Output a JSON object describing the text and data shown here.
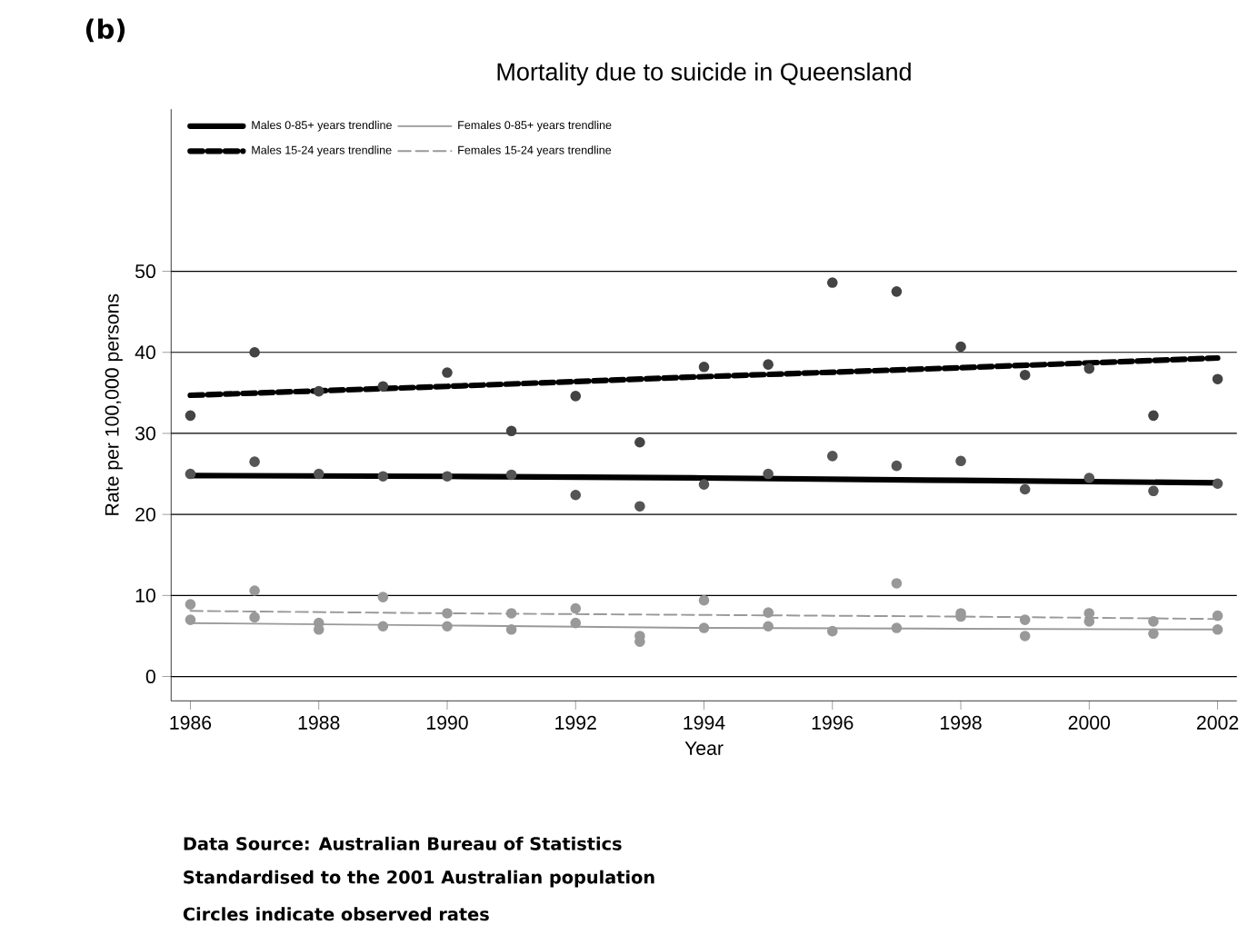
{
  "chart_data": {
    "type": "scatter",
    "title": "Mortality due to suicide in Queensland",
    "xlabel": "Year",
    "ylabel": "Rate per 100,000 persons",
    "annotations": [
      "(b)",
      "Data Source: Australian Bureau of Statistics",
      "Standardised to the 2001 Australian population",
      "Circles indicate observed rates"
    ],
    "x": [
      1986,
      1987,
      1988,
      1989,
      1990,
      1991,
      1992,
      1993,
      1994,
      1995,
      1996,
      1997,
      1998,
      1999,
      2000,
      2001,
      2002
    ],
    "series": [
      {
        "marker": "circle",
        "color": "#444444",
        "values": [
          32.2,
          40.0,
          35.2,
          35.8,
          37.5,
          30.3,
          34.6,
          28.9,
          38.2,
          38.5,
          48.6,
          47.5,
          40.7,
          37.2,
          38.0,
          32.2,
          36.7
        ]
      },
      {
        "marker": "circle",
        "color": "#555555",
        "values": [
          25.0,
          26.5,
          25.0,
          24.7,
          24.7,
          24.9,
          22.4,
          21.0,
          23.7,
          25.0,
          27.2,
          26.0,
          26.6,
          23.1,
          24.5,
          22.9,
          23.8
        ]
      },
      {
        "marker": "circle",
        "color": "#999999",
        "values": [
          8.9,
          10.6,
          5.8,
          9.8,
          7.8,
          7.8,
          8.4,
          5.0,
          9.4,
          7.9,
          null,
          11.5,
          7.8,
          7.0,
          7.8,
          6.8,
          7.5
        ]
      },
      {
        "marker": "circle",
        "color": "#999999",
        "values": [
          7.0,
          7.3,
          6.6,
          6.2,
          6.2,
          5.8,
          6.6,
          4.3,
          6.0,
          6.2,
          5.6,
          6.0,
          7.4,
          5.0,
          6.8,
          5.3,
          5.8
        ]
      },
      {
        "type": "line",
        "name": "Males 0-85+ years trendline",
        "color": "#000000",
        "line_style": "solid",
        "marker": "none",
        "x": [
          1986,
          1990,
          1994,
          1998,
          2002
        ],
        "values": [
          24.8,
          24.7,
          24.5,
          24.2,
          23.9
        ]
      },
      {
        "type": "line",
        "name": "Females 0-85+ years trendline",
        "color": "#999999",
        "line_style": "solid",
        "marker": "none",
        "x": [
          1986,
          1990,
          1994,
          1998,
          2002
        ],
        "values": [
          6.6,
          6.3,
          6.0,
          5.9,
          5.8
        ]
      },
      {
        "type": "line",
        "name": "Males 15-24 years trendline",
        "color": "#000000",
        "line_style": "dashed",
        "marker": "none",
        "x": [
          1986,
          1990,
          1994,
          1998,
          2002
        ],
        "values": [
          34.7,
          35.8,
          37.0,
          38.1,
          39.3
        ]
      },
      {
        "type": "line",
        "name": "Females 15-24 years trendline",
        "color": "#999999",
        "line_style": "dashed",
        "marker": "none",
        "x": [
          1986,
          1990,
          1994,
          1998,
          2002
        ],
        "values": [
          8.1,
          7.8,
          7.6,
          7.4,
          7.1
        ]
      }
    ],
    "xlim": [
      1985.7,
      2002.3
    ],
    "ylim": [
      -3,
      70
    ],
    "xticks": [
      1986,
      1988,
      1990,
      1992,
      1994,
      1996,
      1998,
      2000,
      2002
    ],
    "yticks": [
      0,
      10,
      20,
      30,
      40,
      50
    ],
    "grid": "y",
    "legend": "top left"
  }
}
